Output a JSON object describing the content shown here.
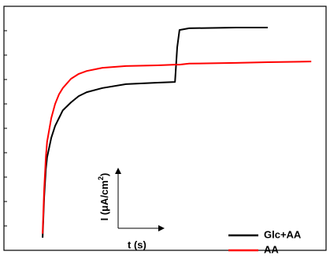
{
  "chart_data": {
    "type": "line",
    "ylabel": [
      "I (μA/cm",
      "2",
      ")"
    ],
    "xlabel": "t (s)",
    "x": [
      12.0,
      12.5,
      13.0,
      13.4,
      14.7,
      15.9,
      17.1,
      18.3,
      20.8,
      23.2,
      25.7,
      30.6,
      37.9,
      47.7,
      53.1,
      53.8,
      54.5,
      57.5,
      72.1,
      81.9,
      95.4
    ],
    "series": [
      {
        "name": "Glc+AA",
        "color": "#000000",
        "values": [
          5.2,
          21.9,
          33.2,
          38.1,
          46.1,
          51.0,
          54.2,
          57.4,
          60.6,
          63.2,
          64.8,
          66.5,
          68.1,
          68.7,
          69.0,
          83.2,
          90.3,
          91.0,
          91.3,
          91.3,
          null
        ]
      },
      {
        "name": "AA",
        "color": "#ff0000",
        "values": [
          6.8,
          25.2,
          38.1,
          44.5,
          54.2,
          60.0,
          63.9,
          66.5,
          70.3,
          72.3,
          73.5,
          74.8,
          75.5,
          75.8,
          76.1,
          76.1,
          76.1,
          76.5,
          76.8,
          77.1,
          77.4
        ]
      }
    ],
    "xlim": [
      0,
      100
    ],
    "ylim": [
      0,
      100
    ],
    "yticks": [
      10,
      20,
      30,
      40,
      50,
      60,
      70,
      80,
      90
    ],
    "legend": "lower right"
  }
}
